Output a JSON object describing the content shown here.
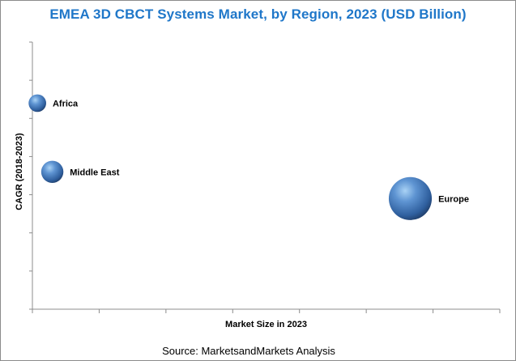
{
  "chart_data": {
    "type": "scatter",
    "title": "EMEA 3D CBCT Systems Market, by Region, 2023 (USD Billion)",
    "xlabel": "Market Size in 2023",
    "ylabel": "CAGR (2018-2023)",
    "source": "Source: MarketsandMarkets Analysis",
    "grid": false,
    "legend": "none",
    "points": [
      {
        "label": "Africa",
        "x": 0.1,
        "y": 5.4,
        "size": 1.0
      },
      {
        "label": "Middle East",
        "x": 0.4,
        "y": 3.6,
        "size": 1.6
      },
      {
        "label": "Europe",
        "x": 7.6,
        "y": 2.9,
        "size": 6.0
      }
    ],
    "xlim": [
      0,
      9.4
    ],
    "ylim": [
      0,
      7
    ],
    "colors": {
      "bubble": "#3f73b3",
      "title": "#1f77c9"
    }
  }
}
